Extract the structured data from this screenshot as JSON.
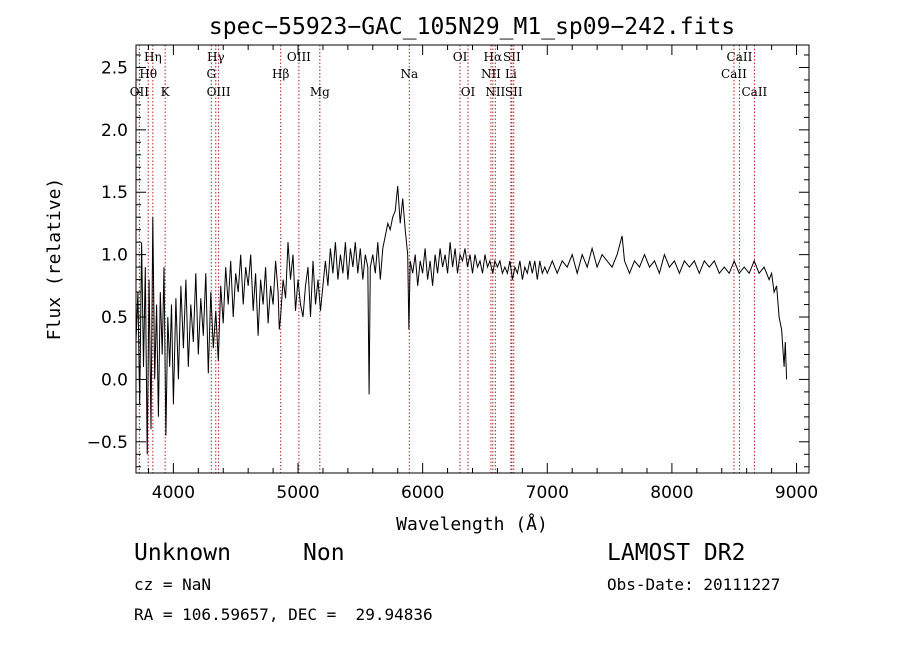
{
  "chart_data": {
    "type": "line",
    "title": "spec−55923−GAC_105N29_M1_sp09−242.fits",
    "xlabel": "Wavelength (Å)",
    "ylabel": "Flux (relative)",
    "xlim": [
      3700,
      9100
    ],
    "ylim": [
      -0.75,
      2.68
    ],
    "x_ticks": [
      4000,
      5000,
      6000,
      7000,
      8000,
      9000
    ],
    "y_ticks": [
      -0.5,
      0.0,
      0.5,
      1.0,
      1.5,
      2.0,
      2.5
    ],
    "x_tick_labels": [
      "4000",
      "5000",
      "6000",
      "7000",
      "8000",
      "9000"
    ],
    "y_tick_labels": [
      "−0.5",
      "0.0",
      "0.5",
      "1.0",
      "1.5",
      "2.0",
      "2.5"
    ],
    "line_color": "#000000",
    "marker_color": "#b22222",
    "series": [
      {
        "values": [
          [
            3700,
            0.3
          ],
          [
            3715,
            0.7
          ],
          [
            3730,
            -0.2
          ],
          [
            3745,
            1.1
          ],
          [
            3760,
            0.1
          ],
          [
            3775,
            0.9
          ],
          [
            3790,
            -0.6
          ],
          [
            3805,
            0.8
          ],
          [
            3820,
            -0.4
          ],
          [
            3835,
            1.3
          ],
          [
            3850,
            0.0
          ],
          [
            3865,
            0.6
          ],
          [
            3880,
            -0.3
          ],
          [
            3895,
            0.7
          ],
          [
            3910,
            0.2
          ],
          [
            3925,
            0.9
          ],
          [
            3940,
            -0.45
          ],
          [
            3955,
            0.5
          ],
          [
            3970,
            0.1
          ],
          [
            3985,
            0.6
          ],
          [
            4000,
            -0.2
          ],
          [
            4020,
            0.65
          ],
          [
            4040,
            0.0
          ],
          [
            4060,
            0.75
          ],
          [
            4080,
            0.25
          ],
          [
            4100,
            0.8
          ],
          [
            4120,
            0.1
          ],
          [
            4140,
            0.6
          ],
          [
            4160,
            0.3
          ],
          [
            4180,
            0.85
          ],
          [
            4200,
            0.2
          ],
          [
            4220,
            0.65
          ],
          [
            4240,
            0.35
          ],
          [
            4260,
            0.85
          ],
          [
            4280,
            0.05
          ],
          [
            4300,
            0.7
          ],
          [
            4320,
            0.25
          ],
          [
            4340,
            0.55
          ],
          [
            4360,
            0.15
          ],
          [
            4380,
            0.75
          ],
          [
            4400,
            0.45
          ],
          [
            4420,
            0.9
          ],
          [
            4440,
            0.6
          ],
          [
            4460,
            0.95
          ],
          [
            4480,
            0.5
          ],
          [
            4500,
            0.85
          ],
          [
            4520,
            0.7
          ],
          [
            4540,
            1.0
          ],
          [
            4560,
            0.6
          ],
          [
            4580,
            0.9
          ],
          [
            4600,
            0.75
          ],
          [
            4620,
            1.0
          ],
          [
            4640,
            0.55
          ],
          [
            4660,
            0.85
          ],
          [
            4680,
            0.35
          ],
          [
            4700,
            0.8
          ],
          [
            4720,
            0.6
          ],
          [
            4740,
            0.9
          ],
          [
            4760,
            0.45
          ],
          [
            4780,
            0.75
          ],
          [
            4800,
            0.6
          ],
          [
            4820,
            0.95
          ],
          [
            4840,
            0.7
          ],
          [
            4850,
            0.4
          ],
          [
            4860,
            0.5
          ],
          [
            4880,
            0.8
          ],
          [
            4900,
            0.65
          ],
          [
            4920,
            1.1
          ],
          [
            4940,
            0.8
          ],
          [
            4960,
            1.0
          ],
          [
            4980,
            0.55
          ],
          [
            5000,
            0.8
          ],
          [
            5020,
            0.6
          ],
          [
            5040,
            0.5
          ],
          [
            5060,
            0.75
          ],
          [
            5080,
            0.9
          ],
          [
            5100,
            0.5
          ],
          [
            5120,
            0.95
          ],
          [
            5140,
            0.6
          ],
          [
            5160,
            0.8
          ],
          [
            5180,
            0.55
          ],
          [
            5200,
            0.75
          ],
          [
            5220,
            0.95
          ],
          [
            5240,
            0.75
          ],
          [
            5260,
            1.05
          ],
          [
            5280,
            0.85
          ],
          [
            5300,
            1.1
          ],
          [
            5320,
            0.8
          ],
          [
            5340,
            1.0
          ],
          [
            5360,
            0.85
          ],
          [
            5380,
            1.1
          ],
          [
            5400,
            0.8
          ],
          [
            5420,
            1.05
          ],
          [
            5440,
            0.9
          ],
          [
            5460,
            1.1
          ],
          [
            5480,
            0.85
          ],
          [
            5500,
            1.05
          ],
          [
            5520,
            0.8
          ],
          [
            5540,
            1.0
          ],
          [
            5560,
            0.9
          ],
          [
            5570,
            -0.12
          ],
          [
            5580,
            0.9
          ],
          [
            5600,
            1.0
          ],
          [
            5620,
            0.85
          ],
          [
            5640,
            1.1
          ],
          [
            5660,
            0.8
          ],
          [
            5680,
            1.05
          ],
          [
            5700,
            1.15
          ],
          [
            5720,
            1.25
          ],
          [
            5740,
            1.2
          ],
          [
            5760,
            1.3
          ],
          [
            5780,
            1.35
          ],
          [
            5800,
            1.55
          ],
          [
            5820,
            1.25
          ],
          [
            5840,
            1.45
          ],
          [
            5860,
            1.2
          ],
          [
            5880,
            1.0
          ],
          [
            5890,
            0.4
          ],
          [
            5900,
            0.95
          ],
          [
            5920,
            0.85
          ],
          [
            5940,
            1.0
          ],
          [
            5960,
            0.75
          ],
          [
            5980,
            0.95
          ],
          [
            6000,
            0.85
          ],
          [
            6020,
            1.05
          ],
          [
            6040,
            0.8
          ],
          [
            6060,
            0.95
          ],
          [
            6080,
            0.75
          ],
          [
            6100,
            1.0
          ],
          [
            6120,
            0.85
          ],
          [
            6140,
            1.05
          ],
          [
            6160,
            0.9
          ],
          [
            6180,
            1.0
          ],
          [
            6200,
            0.85
          ],
          [
            6220,
            1.1
          ],
          [
            6240,
            0.9
          ],
          [
            6260,
            1.05
          ],
          [
            6280,
            0.85
          ],
          [
            6300,
            1.0
          ],
          [
            6320,
            0.95
          ],
          [
            6340,
            1.05
          ],
          [
            6360,
            0.9
          ],
          [
            6380,
            1.0
          ],
          [
            6400,
            0.85
          ],
          [
            6420,
            1.0
          ],
          [
            6440,
            0.9
          ],
          [
            6460,
            0.95
          ],
          [
            6480,
            0.85
          ],
          [
            6500,
            1.0
          ],
          [
            6520,
            0.9
          ],
          [
            6540,
            0.95
          ],
          [
            6563,
            0.85
          ],
          [
            6580,
            0.95
          ],
          [
            6600,
            0.9
          ],
          [
            6620,
            0.95
          ],
          [
            6640,
            0.85
          ],
          [
            6660,
            0.9
          ],
          [
            6680,
            0.85
          ],
          [
            6700,
            0.95
          ],
          [
            6720,
            0.8
          ],
          [
            6740,
            0.9
          ],
          [
            6760,
            0.85
          ],
          [
            6780,
            0.95
          ],
          [
            6800,
            0.8
          ],
          [
            6820,
            0.9
          ],
          [
            6840,
            0.85
          ],
          [
            6860,
            0.95
          ],
          [
            6880,
            0.85
          ],
          [
            6900,
            0.95
          ],
          [
            6920,
            0.8
          ],
          [
            6940,
            0.95
          ],
          [
            6960,
            0.85
          ],
          [
            6980,
            0.9
          ],
          [
            7000,
            0.85
          ],
          [
            7040,
            0.95
          ],
          [
            7080,
            0.85
          ],
          [
            7120,
            0.95
          ],
          [
            7160,
            0.9
          ],
          [
            7200,
            1.0
          ],
          [
            7240,
            0.85
          ],
          [
            7280,
            1.0
          ],
          [
            7320,
            0.9
          ],
          [
            7360,
            1.05
          ],
          [
            7400,
            0.9
          ],
          [
            7440,
            1.0
          ],
          [
            7480,
            0.95
          ],
          [
            7520,
            0.9
          ],
          [
            7560,
            1.0
          ],
          [
            7600,
            1.15
          ],
          [
            7620,
            0.95
          ],
          [
            7660,
            0.85
          ],
          [
            7700,
            0.95
          ],
          [
            7740,
            0.9
          ],
          [
            7780,
            1.0
          ],
          [
            7820,
            0.9
          ],
          [
            7860,
            0.95
          ],
          [
            7900,
            0.85
          ],
          [
            7940,
            1.0
          ],
          [
            7980,
            0.9
          ],
          [
            8020,
            0.95
          ],
          [
            8060,
            0.85
          ],
          [
            8100,
            0.95
          ],
          [
            8140,
            0.9
          ],
          [
            8180,
            0.95
          ],
          [
            8220,
            0.85
          ],
          [
            8260,
            0.95
          ],
          [
            8300,
            0.9
          ],
          [
            8340,
            0.95
          ],
          [
            8380,
            0.85
          ],
          [
            8420,
            0.9
          ],
          [
            8460,
            0.85
          ],
          [
            8500,
            0.95
          ],
          [
            8540,
            0.85
          ],
          [
            8580,
            0.9
          ],
          [
            8620,
            0.85
          ],
          [
            8660,
            0.95
          ],
          [
            8700,
            0.85
          ],
          [
            8740,
            0.9
          ],
          [
            8780,
            0.8
          ],
          [
            8800,
            0.85
          ],
          [
            8820,
            0.7
          ],
          [
            8840,
            0.75
          ],
          [
            8860,
            0.5
          ],
          [
            8880,
            0.4
          ],
          [
            8900,
            0.1
          ],
          [
            8910,
            0.3
          ],
          [
            8920,
            0.0
          ]
        ]
      }
    ],
    "spectral_lines": [
      {
        "label": "OII",
        "wavelength": 3727,
        "row": 3
      },
      {
        "label": "Hη",
        "wavelength": 3835,
        "row": 1
      },
      {
        "label": "Hθ",
        "wavelength": 3798,
        "row": 2
      },
      {
        "label": "K",
        "wavelength": 3934,
        "row": 3
      },
      {
        "label": "Hγ",
        "wavelength": 4340,
        "row": 1
      },
      {
        "label": "G",
        "wavelength": 4304,
        "row": 2
      },
      {
        "label": "OIII",
        "wavelength": 4363,
        "row": 3
      },
      {
        "label": "OIII",
        "wavelength": 5007,
        "row": 1
      },
      {
        "label": "Hβ",
        "wavelength": 4861,
        "row": 2
      },
      {
        "label": "Mg",
        "wavelength": 5175,
        "row": 3
      },
      {
        "label": "Na",
        "wavelength": 5893,
        "row": 2
      },
      {
        "label": "OI",
        "wavelength": 6300,
        "row": 1
      },
      {
        "label": "OI",
        "wavelength": 6364,
        "row": 3
      },
      {
        "label": "Hα",
        "wavelength": 6563,
        "row": 1
      },
      {
        "label": "NII",
        "wavelength": 6548,
        "row": 2
      },
      {
        "label": "NII",
        "wavelength": 6583,
        "row": 3
      },
      {
        "label": "SII",
        "wavelength": 6716,
        "row": 1
      },
      {
        "label": "Li",
        "wavelength": 6708,
        "row": 2
      },
      {
        "label": "SII",
        "wavelength": 6731,
        "row": 3
      },
      {
        "label": "CaII",
        "wavelength": 8542,
        "row": 1
      },
      {
        "label": "CaII",
        "wavelength": 8498,
        "row": 2
      },
      {
        "label": "CaII",
        "wavelength": 8662,
        "row": 3
      }
    ]
  },
  "info": {
    "class": "Unknown",
    "subclass": "Non",
    "survey": "LAMOST DR2",
    "cz": "cz = NaN",
    "obs_date": "Obs-Date: 20111227",
    "coords": "RA = 106.59657, DEC =  29.94836"
  }
}
